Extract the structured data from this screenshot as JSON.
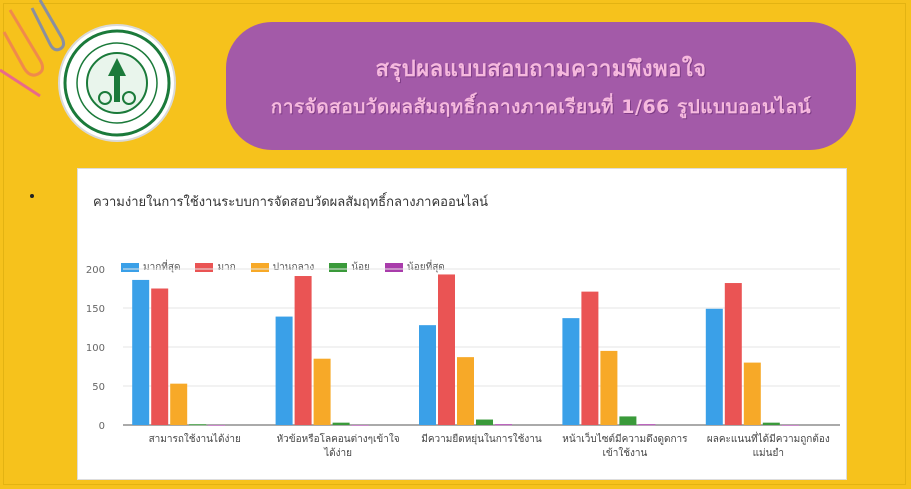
{
  "banner": {
    "line1": "สรุปผลแบบสอบถามความพึงพอใจ",
    "line2": "การจัดสอบวัดผลสัมฤทธิ์กลางภาคเรียนที่ 1/66 รูปแบบออนไลน์"
  },
  "logo": {
    "icon": "school-seal-icon"
  },
  "colors": {
    "background": "#f6c21c",
    "banner": "#a35aa8",
    "banner_text": "#f6b9de",
    "series": [
      "#3aa0e8",
      "#ea5454",
      "#f7a928",
      "#3a9a3a",
      "#a93cab"
    ]
  },
  "chart_data": {
    "type": "bar",
    "title": "ความง่ายในการใช้งานระบบการจัดสอบวัดผลสัมฤทธิ์กลางภาคออนไลน์",
    "legend_position": "top-left",
    "grid": true,
    "ylim": [
      0,
      200
    ],
    "yticks": [
      "200",
      "150",
      "100",
      "50",
      "0"
    ],
    "categories": [
      [
        "สามารถใช้งานได้ง่าย"
      ],
      [
        "หัวข้อหรือโลคอนต่างๆเข้าใจ",
        "ได้ง่าย"
      ],
      [
        "มีความยืดหยุ่นในการใช้งาน"
      ],
      [
        "หน้าเว็บไซต์มีความดึงดูดการ",
        "เข้าใช้งาน"
      ],
      [
        "ผลคะแนนที่ได้มีความถูกต้อง",
        "แม่นยำ"
      ]
    ],
    "series": [
      {
        "name": "มากที่สุด",
        "values": [
          186,
          139,
          128,
          137,
          149
        ]
      },
      {
        "name": "มาก",
        "values": [
          175,
          191,
          193,
          171,
          182
        ]
      },
      {
        "name": "ปานกลาง",
        "values": [
          53,
          85,
          87,
          95,
          80
        ]
      },
      {
        "name": "น้อย",
        "values": [
          1,
          3,
          7,
          11,
          3
        ]
      },
      {
        "name": "น้อยที่สุด",
        "values": [
          0,
          0,
          1,
          1,
          0
        ]
      }
    ]
  }
}
